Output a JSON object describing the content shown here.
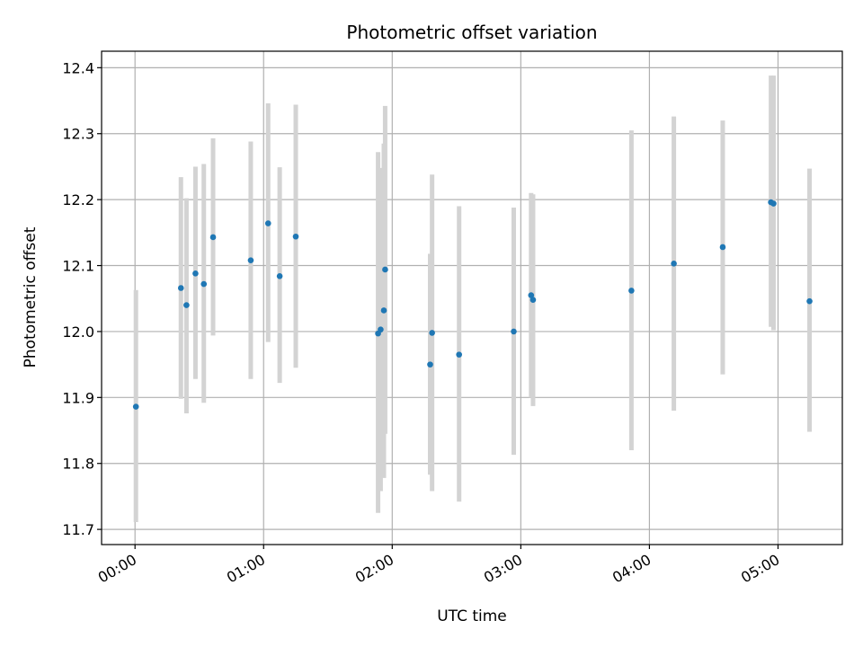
{
  "chart_data": {
    "type": "scatter",
    "title": "Photometric offset variation",
    "xlabel": "UTC time",
    "ylabel": "Photometric offset",
    "grid": true,
    "xlim": [
      -0.26,
      5.5
    ],
    "ylim": [
      11.677,
      12.425
    ],
    "x_ticks": [
      {
        "value": 0,
        "label": "00:00"
      },
      {
        "value": 1,
        "label": "01:00"
      },
      {
        "value": 2,
        "label": "02:00"
      },
      {
        "value": 3,
        "label": "03:00"
      },
      {
        "value": 4,
        "label": "04:00"
      },
      {
        "value": 5,
        "label": "05:00"
      }
    ],
    "y_ticks": [
      {
        "value": 11.7,
        "label": "11.7"
      },
      {
        "value": 11.8,
        "label": "11.8"
      },
      {
        "value": 11.9,
        "label": "11.9"
      },
      {
        "value": 12.0,
        "label": "12.0"
      },
      {
        "value": 12.1,
        "label": "12.1"
      },
      {
        "value": 12.2,
        "label": "12.2"
      },
      {
        "value": 12.3,
        "label": "12.3"
      },
      {
        "value": 12.4,
        "label": "12.4"
      }
    ],
    "colors": {
      "marker": "#1f77b4",
      "errorbar": "#d3d3d3",
      "grid": "#b0b0b0",
      "axes": "#000000"
    },
    "series": [
      {
        "name": "offset",
        "points": [
          {
            "x": 0.007,
            "y": 11.886,
            "lo": 11.711,
            "hi": 12.063
          },
          {
            "x": 0.357,
            "y": 12.066,
            "lo": 11.898,
            "hi": 12.234
          },
          {
            "x": 0.4,
            "y": 12.04,
            "lo": 11.876,
            "hi": 12.202
          },
          {
            "x": 0.47,
            "y": 12.088,
            "lo": 11.928,
            "hi": 12.25
          },
          {
            "x": 0.535,
            "y": 12.072,
            "lo": 11.892,
            "hi": 12.254
          },
          {
            "x": 0.607,
            "y": 12.143,
            "lo": 11.994,
            "hi": 12.293
          },
          {
            "x": 0.9,
            "y": 12.108,
            "lo": 11.928,
            "hi": 12.288
          },
          {
            "x": 1.035,
            "y": 12.164,
            "lo": 11.984,
            "hi": 12.346
          },
          {
            "x": 1.125,
            "y": 12.084,
            "lo": 11.922,
            "hi": 12.249
          },
          {
            "x": 1.25,
            "y": 12.144,
            "lo": 11.945,
            "hi": 12.344
          },
          {
            "x": 1.89,
            "y": 11.997,
            "lo": 11.725,
            "hi": 12.272
          },
          {
            "x": 1.91,
            "y": 12.003,
            "lo": 11.758,
            "hi": 12.248
          },
          {
            "x": 1.935,
            "y": 12.032,
            "lo": 11.778,
            "hi": 12.285
          },
          {
            "x": 1.945,
            "y": 12.094,
            "lo": 11.845,
            "hi": 12.342
          },
          {
            "x": 2.295,
            "y": 11.95,
            "lo": 11.783,
            "hi": 12.118
          },
          {
            "x": 2.31,
            "y": 11.998,
            "lo": 11.758,
            "hi": 12.238
          },
          {
            "x": 2.52,
            "y": 11.965,
            "lo": 11.742,
            "hi": 12.19
          },
          {
            "x": 2.945,
            "y": 12.0,
            "lo": 11.813,
            "hi": 12.188
          },
          {
            "x": 3.08,
            "y": 12.055,
            "lo": 11.9,
            "hi": 12.21
          },
          {
            "x": 3.095,
            "y": 12.048,
            "lo": 11.887,
            "hi": 12.208
          },
          {
            "x": 3.86,
            "y": 12.062,
            "lo": 11.82,
            "hi": 12.305
          },
          {
            "x": 4.19,
            "y": 12.103,
            "lo": 11.88,
            "hi": 12.326
          },
          {
            "x": 4.57,
            "y": 12.128,
            "lo": 11.935,
            "hi": 12.32
          },
          {
            "x": 4.945,
            "y": 12.196,
            "lo": 12.007,
            "hi": 12.388
          },
          {
            "x": 4.965,
            "y": 12.194,
            "lo": 12.002,
            "hi": 12.388
          },
          {
            "x": 5.245,
            "y": 12.046,
            "lo": 11.848,
            "hi": 12.247
          }
        ]
      }
    ]
  }
}
